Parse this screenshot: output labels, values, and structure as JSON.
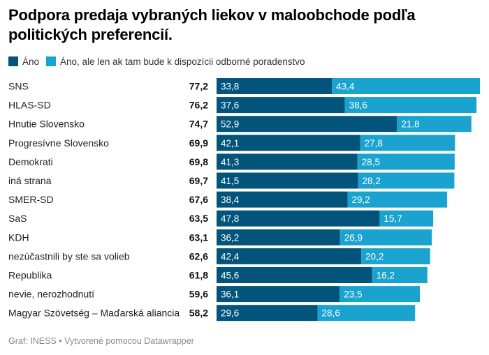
{
  "title": "Podpora predaja vybraných liekov v maloobchode podľa politických preferencií.",
  "footer": "Graf: INESS • Vytvorené pomocou Datawrapper",
  "colors": {
    "ano": "#03547a",
    "ano_poradenstvo": "#1ba3d0"
  },
  "chart_data": {
    "type": "bar",
    "orientation": "horizontal",
    "stacked": true,
    "title": "Podpora predaja vybraných liekov v maloobchode podľa politických preferencií.",
    "legend_position": "top-left",
    "xlabel": "",
    "ylabel": "",
    "xlim": [
      0,
      77.2
    ],
    "grid": false,
    "categories": [
      "SNS",
      "HLAS-SD",
      "Hnutie Slovensko",
      "Progresívne Slovensko",
      "Demokrati",
      "iná strana",
      "SMER-SD",
      "SaS",
      "KDH",
      "nezúčastnili by ste sa volieb",
      "Republika",
      "nevie, nerozhodnutí",
      "Magyar Szövetség – Maďarská aliancia"
    ],
    "totals": [
      "77,2",
      "76,2",
      "74,7",
      "69,9",
      "69,8",
      "69,7",
      "67,6",
      "63,5",
      "63,1",
      "62,6",
      "61,8",
      "59,6",
      "58,2"
    ],
    "series": [
      {
        "name": "Áno",
        "color": "#03547a",
        "values": [
          33.8,
          37.6,
          52.9,
          42.1,
          41.3,
          41.5,
          38.4,
          47.8,
          36.2,
          42.4,
          45.6,
          36.1,
          29.6
        ],
        "labels": [
          "33,8",
          "37,6",
          "52,9",
          "42,1",
          "41,3",
          "41,5",
          "38,4",
          "47,8",
          "36,2",
          "42,4",
          "45,6",
          "36,1",
          "29,6"
        ]
      },
      {
        "name": "Áno, ale len ak tam bude k dispozícii odborné poradenstvo",
        "color": "#1ba3d0",
        "values": [
          43.4,
          38.6,
          21.8,
          27.8,
          28.5,
          28.2,
          29.2,
          15.7,
          26.9,
          20.2,
          16.2,
          23.5,
          28.6
        ],
        "labels": [
          "43,4",
          "38,6",
          "21,8",
          "27,8",
          "28,5",
          "28,2",
          "29,2",
          "15,7",
          "26,9",
          "20,2",
          "16,2",
          "23,5",
          "28,6"
        ]
      }
    ]
  }
}
